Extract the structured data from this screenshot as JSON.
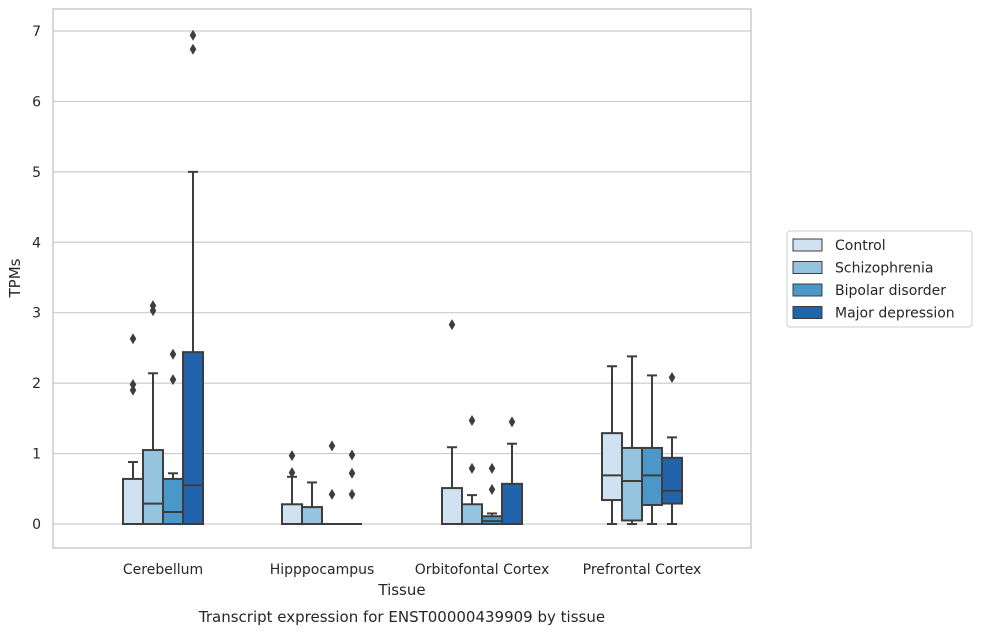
{
  "chart_data": {
    "type": "box",
    "caption": "Transcript expression for ENST00000439909 by tissue",
    "xlabel": "Tissue",
    "ylabel": "TPMs",
    "ylim": [
      -0.33,
      7.3
    ],
    "yticks": [
      0,
      1,
      2,
      3,
      4,
      5,
      6,
      7
    ],
    "grid": true,
    "legend_position": "right",
    "categories": [
      "Cerebellum",
      "Hipppocampus",
      "Orbitofontal Cortex",
      "Prefrontal Cortex"
    ],
    "series": [
      {
        "name": "Control",
        "color": "#d0e1f2",
        "boxes": [
          {
            "min": 0,
            "q1": 0,
            "median": 0,
            "q3": 0.64,
            "max": 0.88,
            "outliers": [
              1.9,
              1.98,
              2.63
            ]
          },
          {
            "min": 0,
            "q1": 0,
            "median": 0,
            "q3": 0.28,
            "max": 0.67,
            "outliers": [
              0.73,
              0.97
            ]
          },
          {
            "min": 0,
            "q1": 0,
            "median": 0,
            "q3": 0.51,
            "max": 1.09,
            "outliers": [
              2.83
            ]
          },
          {
            "min": 0,
            "q1": 0.34,
            "median": 0.69,
            "q3": 1.29,
            "max": 2.24,
            "outliers": []
          }
        ]
      },
      {
        "name": "Schizophrenia",
        "color": "#94c4df",
        "boxes": [
          {
            "min": 0,
            "q1": 0,
            "median": 0.29,
            "q3": 1.05,
            "max": 2.14,
            "outliers": [
              3.03,
              3.1
            ]
          },
          {
            "min": 0,
            "q1": 0,
            "median": 0,
            "q3": 0.24,
            "max": 0.59,
            "outliers": []
          },
          {
            "min": 0,
            "q1": 0,
            "median": 0,
            "q3": 0.28,
            "max": 0.41,
            "outliers": [
              0.79,
              1.47
            ]
          },
          {
            "min": 0,
            "q1": 0.05,
            "median": 0.61,
            "q3": 1.08,
            "max": 2.38,
            "outliers": []
          }
        ]
      },
      {
        "name": "Bipolar disorder",
        "color": "#4a98c9",
        "boxes": [
          {
            "min": 0,
            "q1": 0,
            "median": 0.17,
            "q3": 0.64,
            "max": 0.72,
            "outliers": [
              2.05,
              2.41
            ]
          },
          {
            "min": 0,
            "q1": 0,
            "median": 0,
            "q3": 0,
            "max": 0,
            "outliers": [
              0.42,
              1.11
            ]
          },
          {
            "min": 0,
            "q1": 0,
            "median": 0.04,
            "q3": 0.11,
            "max": 0.15,
            "outliers": [
              0.49,
              0.79
            ]
          },
          {
            "min": 0,
            "q1": 0.27,
            "median": 0.69,
            "q3": 1.08,
            "max": 2.11,
            "outliers": []
          }
        ]
      },
      {
        "name": "Major depression",
        "color": "#2164ab",
        "boxes": [
          {
            "min": 0,
            "q1": 0,
            "median": 0.55,
            "q3": 2.44,
            "max": 5.0,
            "outliers": [
              6.74,
              6.94
            ]
          },
          {
            "min": 0,
            "q1": 0,
            "median": 0,
            "q3": 0,
            "max": 0,
            "outliers": [
              0.42,
              0.72,
              0.98
            ]
          },
          {
            "min": 0,
            "q1": 0,
            "median": 0,
            "q3": 0.57,
            "max": 1.14,
            "outliers": [
              1.45
            ]
          },
          {
            "min": 0,
            "q1": 0.29,
            "median": 0.47,
            "q3": 0.94,
            "max": 1.23,
            "outliers": [
              2.08
            ]
          }
        ]
      }
    ]
  }
}
